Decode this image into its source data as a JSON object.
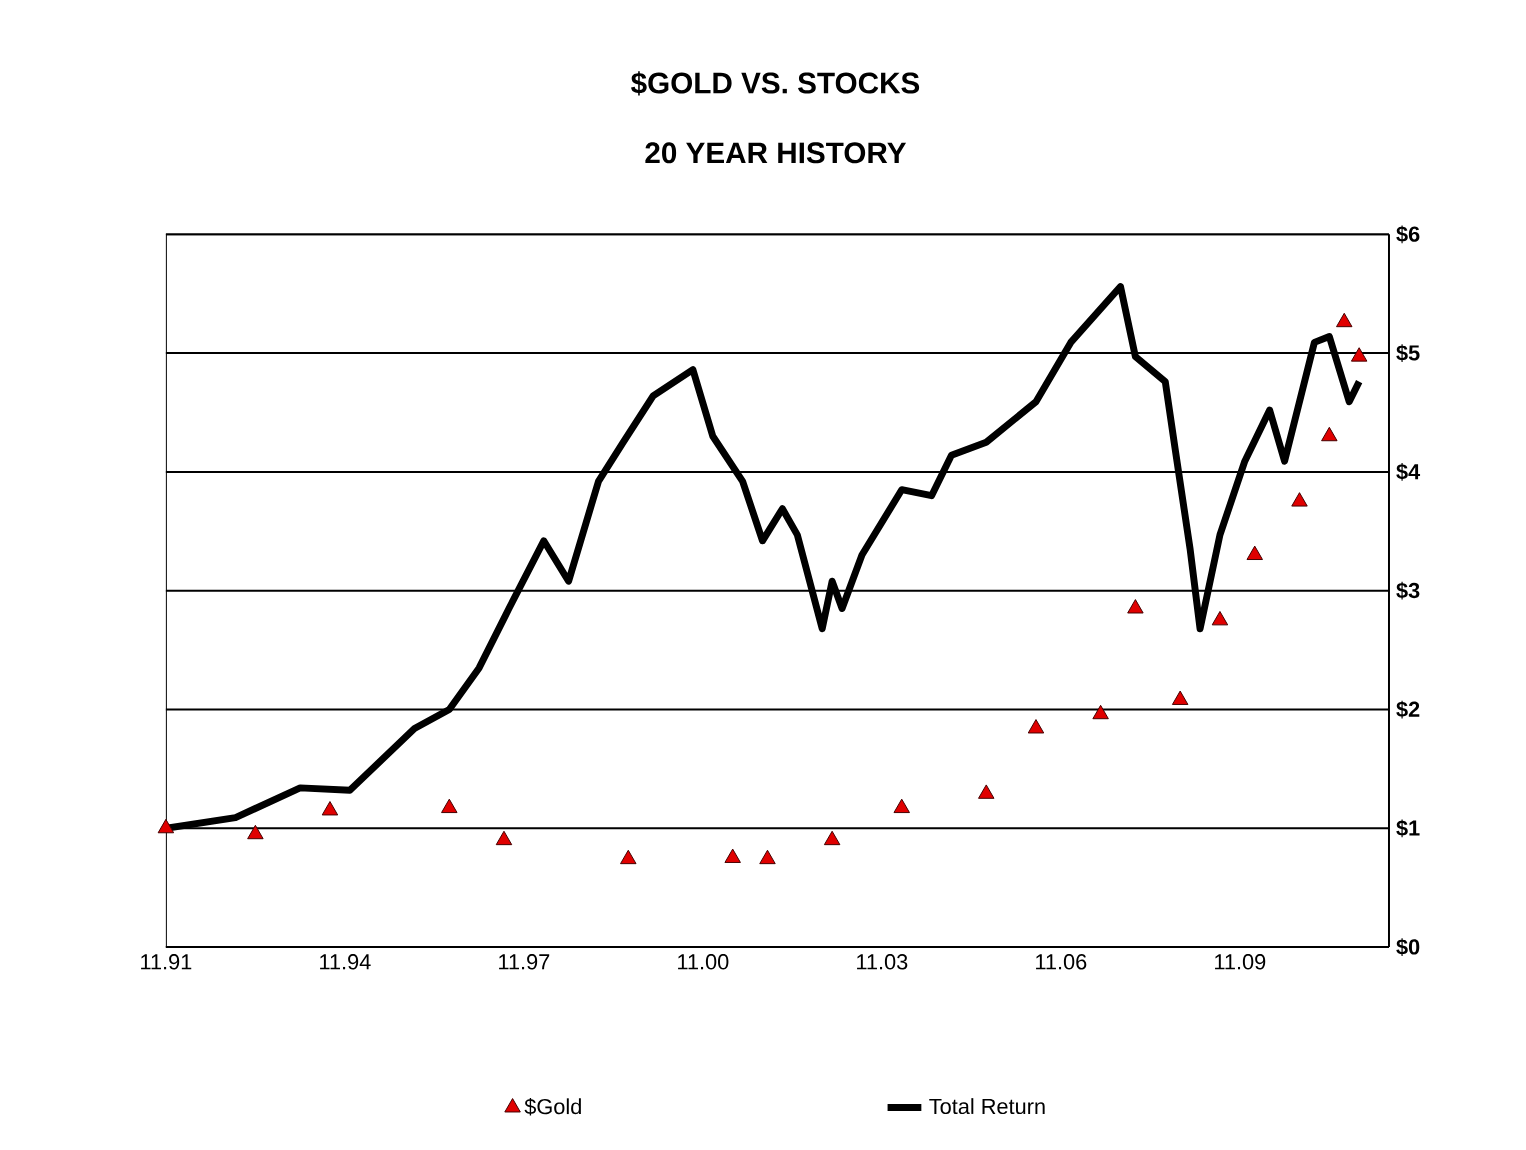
{
  "chart_data": {
    "type": "line",
    "title": "$GOLD VS. STOCKS",
    "subtitle": "20 YEAR HISTORY",
    "xlim": [
      "1991-11",
      "2012-05"
    ],
    "xticks": [
      {
        "value": "1991-11",
        "label": "11.91"
      },
      {
        "value": "1994-11",
        "label": "11.94"
      },
      {
        "value": "1997-11",
        "label": "11.97"
      },
      {
        "value": "2000-11",
        "label": "11.00"
      },
      {
        "value": "2003-11",
        "label": "11.03"
      },
      {
        "value": "2006-11",
        "label": "11.06"
      },
      {
        "value": "2009-11",
        "label": "11.09"
      }
    ],
    "ylim": [
      0,
      6
    ],
    "yticks": [
      {
        "value": 0,
        "label": "$0"
      },
      {
        "value": 1,
        "label": "$1"
      },
      {
        "value": 2,
        "label": "$2"
      },
      {
        "value": 3,
        "label": "$3"
      },
      {
        "value": 4,
        "label": "$4"
      },
      {
        "value": 5,
        "label": "$5"
      },
      {
        "value": 6,
        "label": "$6"
      }
    ],
    "grid": "y",
    "legend": "bottom",
    "series": [
      {
        "name": "$Gold",
        "type": "scatter",
        "color": "#e00000",
        "marker": "triangle",
        "x": [
          "1991-11",
          "1993-05",
          "1994-08",
          "1996-08",
          "1997-07",
          "1999-08",
          "2001-05",
          "2001-12",
          "2003-01",
          "2004-03",
          "2005-08",
          "2006-06",
          "2007-07",
          "2008-02",
          "2008-11",
          "2009-07",
          "2010-02",
          "2010-11",
          "2011-05",
          "2011-08",
          "2011-11"
        ],
        "values": [
          1.0,
          0.95,
          1.15,
          1.17,
          0.9,
          0.74,
          0.75,
          0.74,
          0.9,
          1.17,
          1.29,
          1.84,
          1.96,
          2.85,
          2.08,
          2.75,
          3.3,
          3.75,
          4.3,
          5.26,
          4.97
        ]
      },
      {
        "name": "Total Return",
        "color": "#000000",
        "marker": "none",
        "line_style": "solid",
        "x": [
          "1991-11",
          "1993-01",
          "1994-02",
          "1994-12",
          "1996-01",
          "1996-08",
          "1997-02",
          "1997-08",
          "1998-03",
          "1998-08",
          "1999-02",
          "1999-07",
          "2000-01",
          "2000-09",
          "2001-01",
          "2001-07",
          "2001-11",
          "2002-03",
          "2002-06",
          "2002-11",
          "2003-01",
          "2003-03",
          "2003-07",
          "2004-03",
          "2004-09",
          "2005-01",
          "2005-08",
          "2006-06",
          "2007-01",
          "2007-11",
          "2008-02",
          "2008-08",
          "2008-10",
          "2009-01",
          "2009-03",
          "2009-07",
          "2009-12",
          "2010-05",
          "2010-08",
          "2011-02",
          "2011-05",
          "2011-09",
          "2011-11"
        ],
        "values": [
          1.0,
          1.09,
          1.34,
          1.32,
          1.84,
          2.0,
          2.35,
          2.85,
          3.42,
          3.08,
          3.92,
          4.25,
          4.64,
          4.86,
          4.3,
          3.92,
          3.42,
          3.69,
          3.47,
          2.68,
          3.08,
          2.85,
          3.3,
          3.85,
          3.8,
          4.14,
          4.25,
          4.59,
          5.09,
          5.56,
          4.97,
          4.76,
          4.19,
          3.35,
          2.68,
          3.47,
          4.09,
          4.52,
          4.09,
          5.09,
          5.14,
          4.59,
          4.76
        ]
      }
    ]
  }
}
